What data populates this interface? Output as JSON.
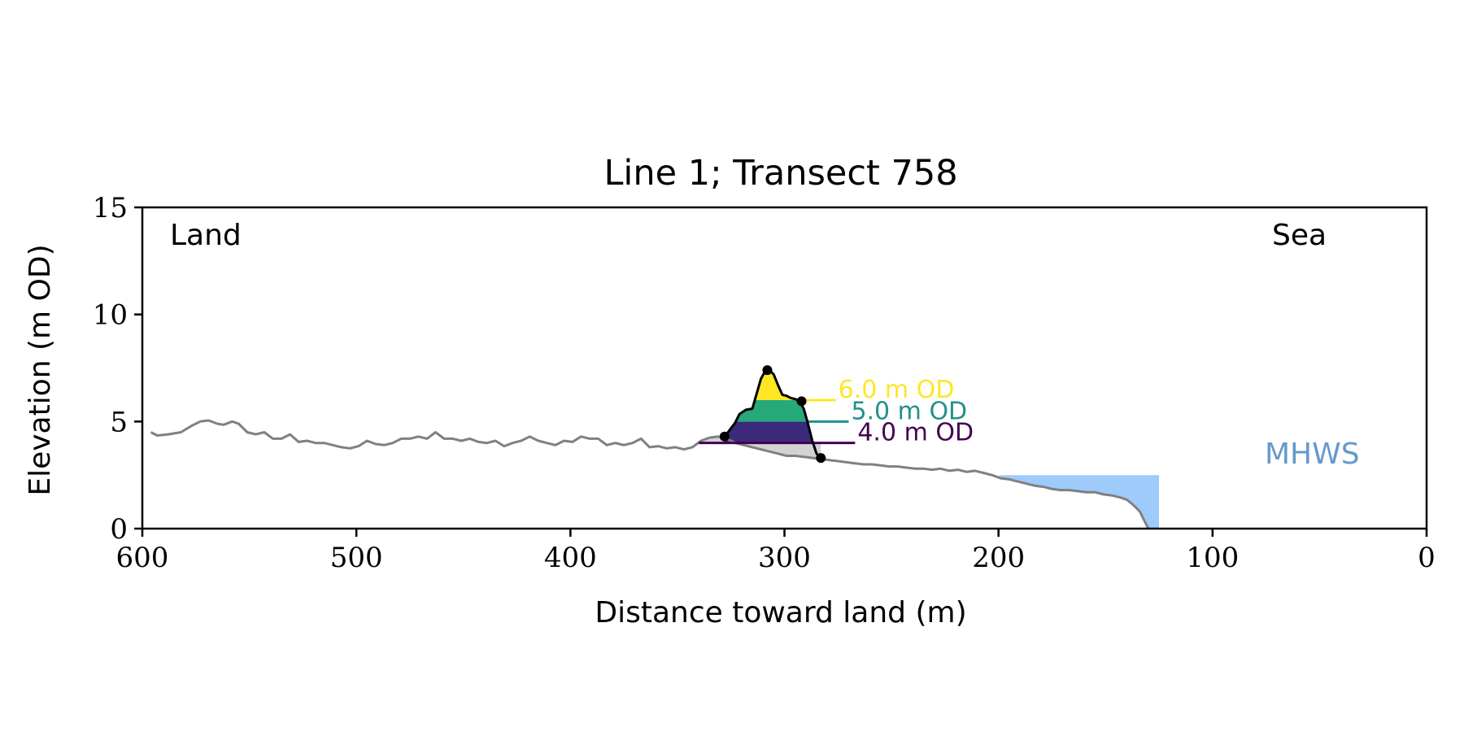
{
  "chart_data": {
    "type": "area",
    "title": "Line 1; Transect 758",
    "xlabel": "Distance toward land (m)",
    "ylabel": "Elevation (m OD)",
    "xlim": [
      600,
      0
    ],
    "ylim": [
      0,
      15
    ],
    "x_ticks": [
      600,
      500,
      400,
      300,
      200,
      100,
      0
    ],
    "y_ticks": [
      0,
      5,
      10,
      15
    ],
    "grid": false,
    "corner_labels": {
      "left": "Land",
      "right": "Sea"
    },
    "profile": {
      "color": "#808080",
      "x": [
        596,
        593,
        588,
        582,
        577,
        573,
        569,
        565,
        562,
        558,
        555,
        551,
        547,
        543,
        539,
        535,
        531,
        527,
        523,
        519,
        515,
        511,
        507,
        503,
        499,
        495,
        491,
        487,
        483,
        479,
        475,
        471,
        467,
        463,
        459,
        455,
        451,
        447,
        443,
        439,
        435,
        431,
        427,
        423,
        419,
        415,
        411,
        407,
        403,
        399,
        395,
        391,
        387,
        383,
        379,
        375,
        371,
        367,
        363,
        359,
        355,
        351,
        347,
        343,
        339,
        335,
        331,
        327,
        323,
        319,
        315,
        311,
        307,
        303,
        299,
        295,
        291,
        287,
        283,
        279,
        275,
        271,
        267,
        263,
        259,
        255,
        251,
        247,
        243,
        239,
        235,
        231,
        227,
        223,
        219,
        215,
        211,
        207,
        203,
        199,
        195,
        191,
        187,
        183,
        179,
        175,
        171,
        167,
        163,
        159,
        155,
        151,
        147,
        143,
        140,
        137,
        134,
        132,
        130
      ],
      "y": [
        4.5,
        4.35,
        4.4,
        4.5,
        4.8,
        5.0,
        5.05,
        4.9,
        4.85,
        5.0,
        4.9,
        4.5,
        4.4,
        4.5,
        4.2,
        4.2,
        4.4,
        4.05,
        4.1,
        4.0,
        4.0,
        3.9,
        3.8,
        3.75,
        3.85,
        4.1,
        3.95,
        3.9,
        4.0,
        4.2,
        4.2,
        4.3,
        4.2,
        4.5,
        4.2,
        4.2,
        4.1,
        4.2,
        4.05,
        4.0,
        4.1,
        3.85,
        4.0,
        4.1,
        4.3,
        4.1,
        4.0,
        3.9,
        4.1,
        4.05,
        4.3,
        4.2,
        4.2,
        3.9,
        4.0,
        3.9,
        4.0,
        4.2,
        3.8,
        3.85,
        3.75,
        3.8,
        3.7,
        3.8,
        4.1,
        4.25,
        4.3,
        4.2,
        4.0,
        3.9,
        3.8,
        3.7,
        3.6,
        3.5,
        3.4,
        3.4,
        3.35,
        3.3,
        3.25,
        3.2,
        3.15,
        3.1,
        3.05,
        3.0,
        3.0,
        2.95,
        2.9,
        2.9,
        2.85,
        2.8,
        2.8,
        2.75,
        2.8,
        2.7,
        2.75,
        2.65,
        2.7,
        2.6,
        2.5,
        2.35,
        2.3,
        2.2,
        2.1,
        2.0,
        1.95,
        1.85,
        1.8,
        1.8,
        1.75,
        1.7,
        1.7,
        1.6,
        1.55,
        1.45,
        1.35,
        1.1,
        0.8,
        0.4,
        0.0
      ]
    },
    "dune": {
      "color": "#000000",
      "x": [
        328,
        326,
        323,
        321,
        318,
        315,
        313,
        311,
        309,
        307,
        305,
        303,
        301,
        299,
        297,
        295,
        293,
        291,
        289,
        287,
        285,
        283
      ],
      "y": [
        4.3,
        4.55,
        4.95,
        5.35,
        5.55,
        5.6,
        6.3,
        7.0,
        7.35,
        7.4,
        7.2,
        6.7,
        6.25,
        6.2,
        6.1,
        6.05,
        5.95,
        5.6,
        4.9,
        4.1,
        3.5,
        3.3
      ]
    },
    "key_points": [
      {
        "x": 328,
        "y": 4.3
      },
      {
        "x": 308,
        "y": 7.4
      },
      {
        "x": 292,
        "y": 5.95
      },
      {
        "x": 283,
        "y": 3.3
      }
    ],
    "dune_base_fill": {
      "color": "#d3d3d3",
      "x_from": 340,
      "x_to": 283,
      "y_from": 4.0,
      "y_to": 3.3
    },
    "contours": [
      {
        "level": 4.0,
        "label": "4.0 m OD",
        "color": "#440154",
        "line_to_x": 267
      },
      {
        "level": 5.0,
        "label": "5.0 m OD",
        "color": "#21918c",
        "line_to_x": 270
      },
      {
        "level": 6.0,
        "label": "6.0 m OD",
        "color": "#fde725",
        "line_to_x": 276
      }
    ],
    "band_colors": [
      "#3b2a7a",
      "#26a97a",
      "#fde725"
    ],
    "mhws": {
      "label": "MHWS",
      "level": 2.5,
      "x_from": 200,
      "x_to": 125,
      "fill": "#9ecbfc",
      "label_color": "#6699cc"
    }
  }
}
